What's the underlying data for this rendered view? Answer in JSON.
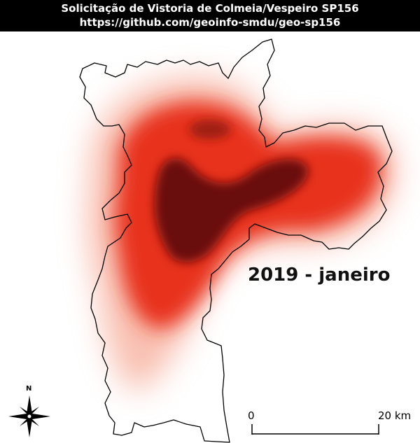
{
  "header": {
    "title": "Solicitação de Vistoria de Colmeia/Vespeiro SP156",
    "url": "https://github.com/geoinfo-smdu/geo-sp156"
  },
  "map": {
    "period_label": "2019 - janeiro",
    "north_label": "N",
    "scale": {
      "start_label": "0",
      "end_label": "20 km"
    },
    "colors": {
      "heat_low": "#fde6de",
      "heat_mid": "#e8311f",
      "heat_high": "#6b0a0c",
      "boundary": "#000000"
    }
  }
}
